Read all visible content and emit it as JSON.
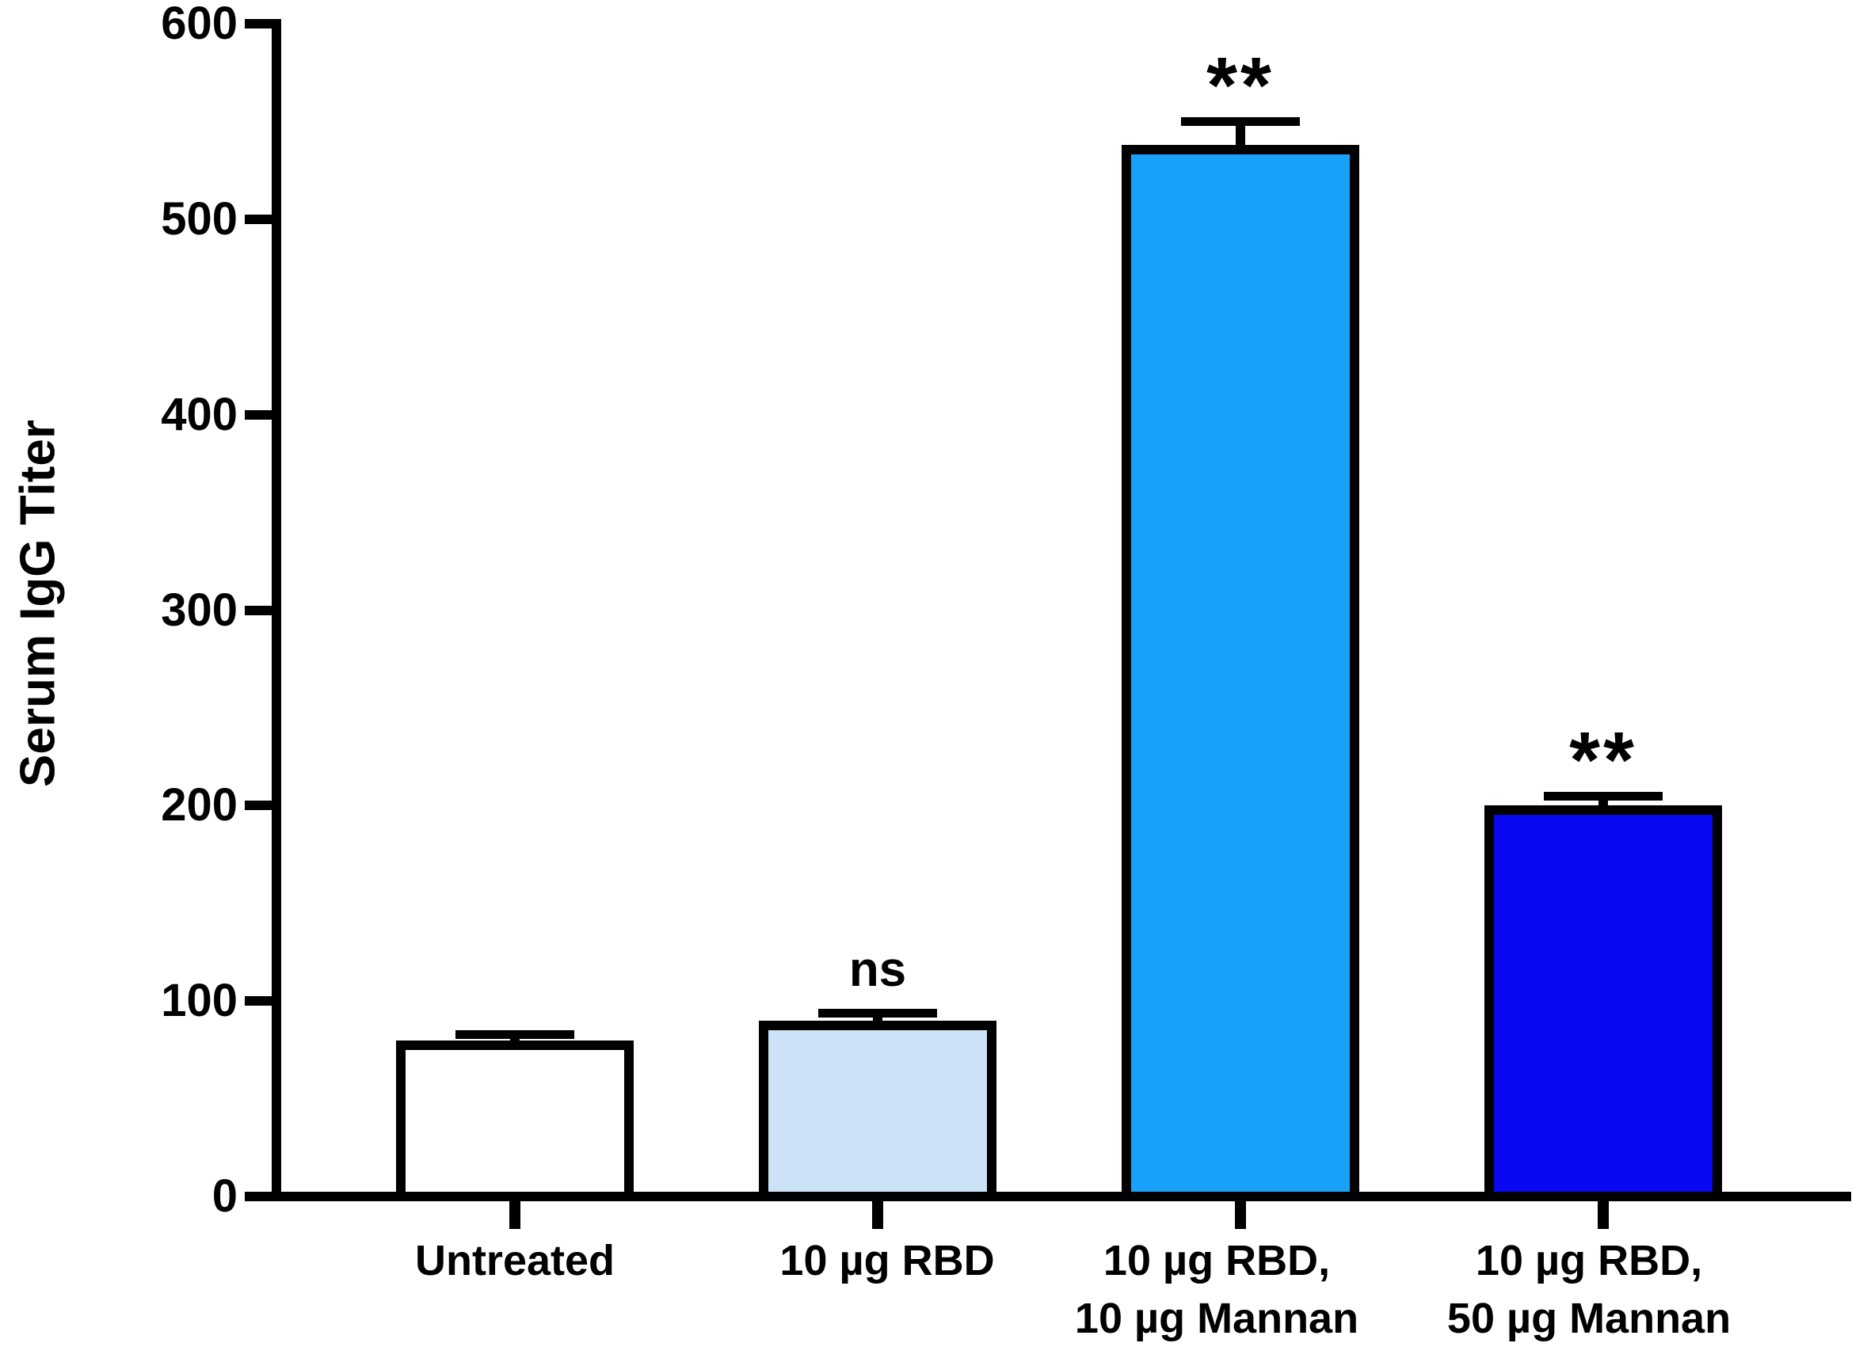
{
  "chart_data": {
    "type": "bar",
    "title": "",
    "ylabel": "Serum IgG Titer",
    "xlabel": "",
    "ylim": [
      0,
      600
    ],
    "yticks": [
      0,
      100,
      200,
      300,
      400,
      500,
      600
    ],
    "grid": false,
    "legend": null,
    "categories": [
      "Untreated",
      "10 µg RBD",
      "10 µg RBD,\n10 µg Mannan",
      "10 µg RBD,\n50 µg Mannan"
    ],
    "values": [
      80,
      90,
      538,
      200
    ],
    "errors_plus": [
      3,
      4,
      12,
      5
    ],
    "significance": [
      "",
      "ns",
      "**",
      "**"
    ],
    "bar_colors": [
      "#ffffff",
      "#cce2f7",
      "#18a1f8",
      "#0808f0"
    ],
    "bar_border_color": "#000000",
    "axis_color": "#000000",
    "error_bar_style": "cap-above-bar"
  }
}
